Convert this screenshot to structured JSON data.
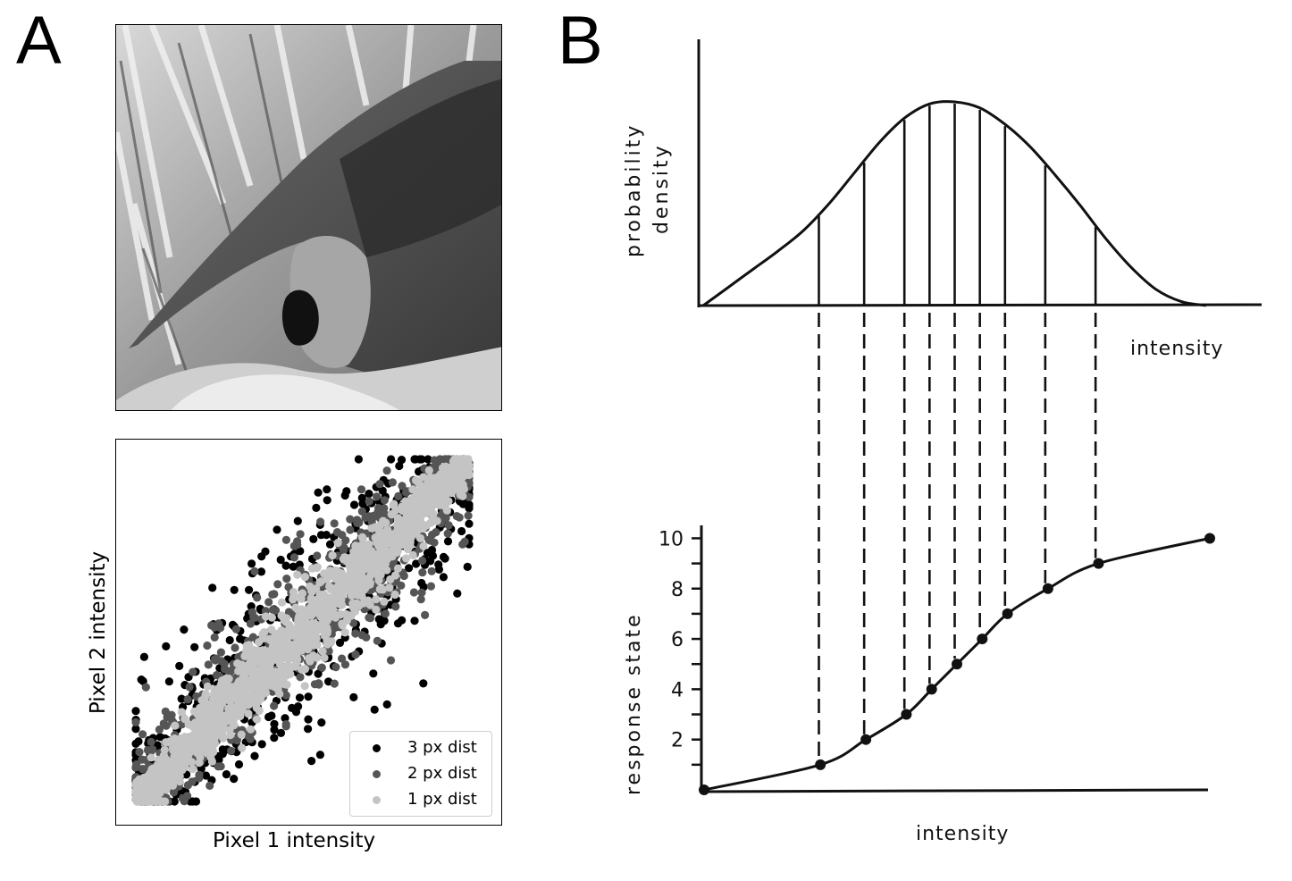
{
  "panels": {
    "a_label": "A",
    "b_label": "B"
  },
  "photo": {
    "subject": "anteater",
    "style": "grayscale"
  },
  "scatter": {
    "xlabel": "Pixel 1 intensity",
    "ylabel": "Pixel 2 intensity",
    "legend": [
      {
        "label": "3 px dist",
        "color": "#000000"
      },
      {
        "label": "2 px dist",
        "color": "#555555"
      },
      {
        "label": "1 px dist",
        "color": "#c4c4c4"
      }
    ]
  },
  "chart_data": [
    {
      "type": "scatter",
      "xlabel": "Pixel 1 intensity",
      "ylabel": "Pixel 2 intensity",
      "xlim": [
        0,
        1
      ],
      "ylim": [
        0,
        1
      ],
      "grid": false,
      "legend_position": "bottom-right",
      "series": [
        {
          "name": "3 px dist",
          "color": "#000000",
          "spread": 0.16
        },
        {
          "name": "2 px dist",
          "color": "#555555",
          "spread": 0.11
        },
        {
          "name": "1 px dist",
          "color": "#c4c4c4",
          "spread": 0.05
        }
      ]
    },
    {
      "type": "area",
      "ylabel": "probability density",
      "xlabel": "intensity",
      "x": [
        0.0,
        0.05,
        0.1,
        0.15,
        0.2,
        0.25,
        0.3,
        0.35,
        0.4,
        0.45,
        0.5,
        0.55,
        0.6,
        0.65,
        0.7,
        0.75,
        0.8,
        0.85,
        0.9,
        0.95,
        1.0
      ],
      "y": [
        0.0,
        0.09,
        0.18,
        0.27,
        0.37,
        0.5,
        0.65,
        0.8,
        0.92,
        0.99,
        1.0,
        0.97,
        0.89,
        0.78,
        0.64,
        0.49,
        0.33,
        0.19,
        0.08,
        0.02,
        0.0
      ],
      "dividers_x": [
        0.23,
        0.32,
        0.4,
        0.45,
        0.5,
        0.55,
        0.6,
        0.68,
        0.78
      ],
      "grid": false
    },
    {
      "type": "line",
      "ylabel": "response state",
      "xlabel": "intensity",
      "ylim": [
        0,
        10.5
      ],
      "yticks": [
        2,
        4,
        6,
        8,
        10
      ],
      "x": [
        0.0,
        0.23,
        0.32,
        0.4,
        0.45,
        0.5,
        0.55,
        0.6,
        0.68,
        0.78,
        1.0
      ],
      "y": [
        0,
        1,
        2,
        3,
        4,
        5,
        6,
        7,
        8,
        9,
        10
      ],
      "grid": false
    }
  ]
}
